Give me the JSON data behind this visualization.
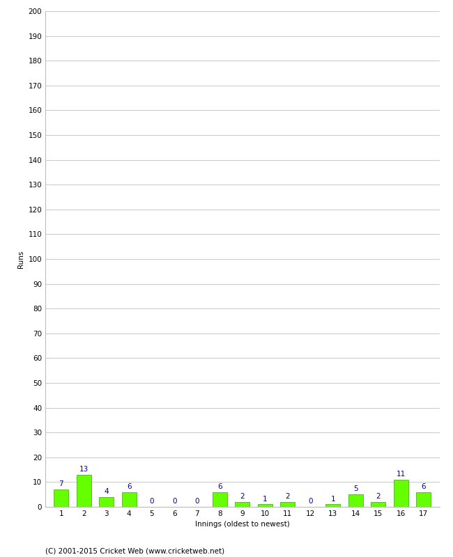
{
  "innings": [
    1,
    2,
    3,
    4,
    5,
    6,
    7,
    8,
    9,
    10,
    11,
    12,
    13,
    14,
    15,
    16,
    17
  ],
  "runs": [
    7,
    13,
    4,
    6,
    0,
    0,
    0,
    6,
    2,
    1,
    2,
    0,
    1,
    5,
    2,
    11,
    6
  ],
  "bar_color": "#66ff00",
  "bar_edge_color": "#33aa00",
  "label_color": "#000099",
  "ylabel": "Runs",
  "xlabel": "Innings (oldest to newest)",
  "ylim": [
    0,
    200
  ],
  "yticks": [
    0,
    10,
    20,
    30,
    40,
    50,
    60,
    70,
    80,
    90,
    100,
    110,
    120,
    130,
    140,
    150,
    160,
    170,
    180,
    190,
    200
  ],
  "footer": "(C) 2001-2015 Cricket Web (www.cricketweb.net)",
  "background_color": "#ffffff",
  "grid_color": "#cccccc",
  "label_fontsize": 7.5,
  "axis_label_fontsize": 7.5,
  "tick_fontsize": 7.5,
  "footer_fontsize": 7.5
}
